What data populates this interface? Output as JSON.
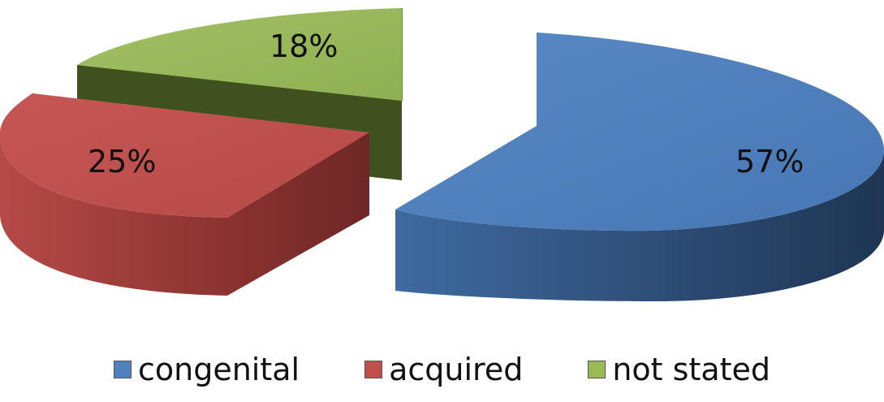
{
  "chart_data": {
    "type": "pie",
    "title": "",
    "categories": [
      "congenital",
      "acquired",
      "not stated"
    ],
    "values": [
      57,
      25,
      18
    ],
    "value_labels": [
      "57%",
      "25%",
      "18%"
    ],
    "colors": [
      "#4f81bd",
      "#c0504d",
      "#9bbb59"
    ],
    "legend_position": "bottom",
    "style": "3d-exploded"
  },
  "legend": {
    "items": [
      {
        "label": "congenital",
        "color": "#4f81bd"
      },
      {
        "label": "acquired",
        "color": "#c0504d"
      },
      {
        "label": "not stated",
        "color": "#9bbb59"
      }
    ]
  }
}
